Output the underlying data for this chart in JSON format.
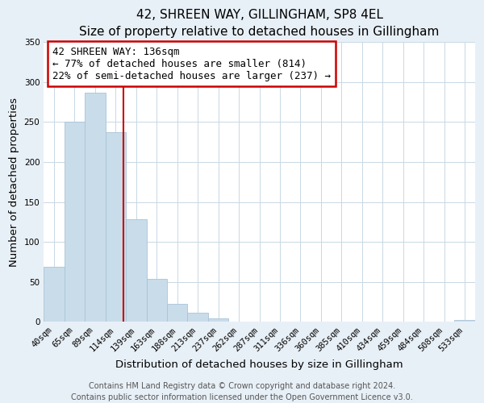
{
  "title": "42, SHREEN WAY, GILLINGHAM, SP8 4EL",
  "subtitle": "Size of property relative to detached houses in Gillingham",
  "xlabel": "Distribution of detached houses by size in Gillingham",
  "ylabel": "Number of detached properties",
  "bar_labels": [
    "40sqm",
    "65sqm",
    "89sqm",
    "114sqm",
    "139sqm",
    "163sqm",
    "188sqm",
    "213sqm",
    "237sqm",
    "262sqm",
    "287sqm",
    "311sqm",
    "336sqm",
    "360sqm",
    "385sqm",
    "410sqm",
    "434sqm",
    "459sqm",
    "484sqm",
    "508sqm",
    "533sqm"
  ],
  "bar_values": [
    69,
    250,
    287,
    237,
    128,
    54,
    22,
    11,
    4,
    0,
    0,
    0,
    0,
    0,
    0,
    0,
    0,
    0,
    0,
    0,
    2
  ],
  "bar_color": "#c9dcea",
  "bar_edge_color": "#a8c4d8",
  "vline_color": "#cc0000",
  "annotation_text": "42 SHREEN WAY: 136sqm\n← 77% of detached houses are smaller (814)\n22% of semi-detached houses are larger (237) →",
  "annotation_box_facecolor": "#ffffff",
  "annotation_box_edgecolor": "#cc0000",
  "ylim": [
    0,
    350
  ],
  "yticks": [
    0,
    50,
    100,
    150,
    200,
    250,
    300,
    350
  ],
  "footer_line1": "Contains HM Land Registry data © Crown copyright and database right 2024.",
  "footer_line2": "Contains public sector information licensed under the Open Government Licence v3.0.",
  "fig_facecolor": "#e8f0f7",
  "plot_facecolor": "#ffffff",
  "grid_color": "#c8d8e4",
  "title_fontsize": 11,
  "axis_label_fontsize": 9.5,
  "tick_fontsize": 7.5,
  "annotation_fontsize": 9,
  "footer_fontsize": 7
}
